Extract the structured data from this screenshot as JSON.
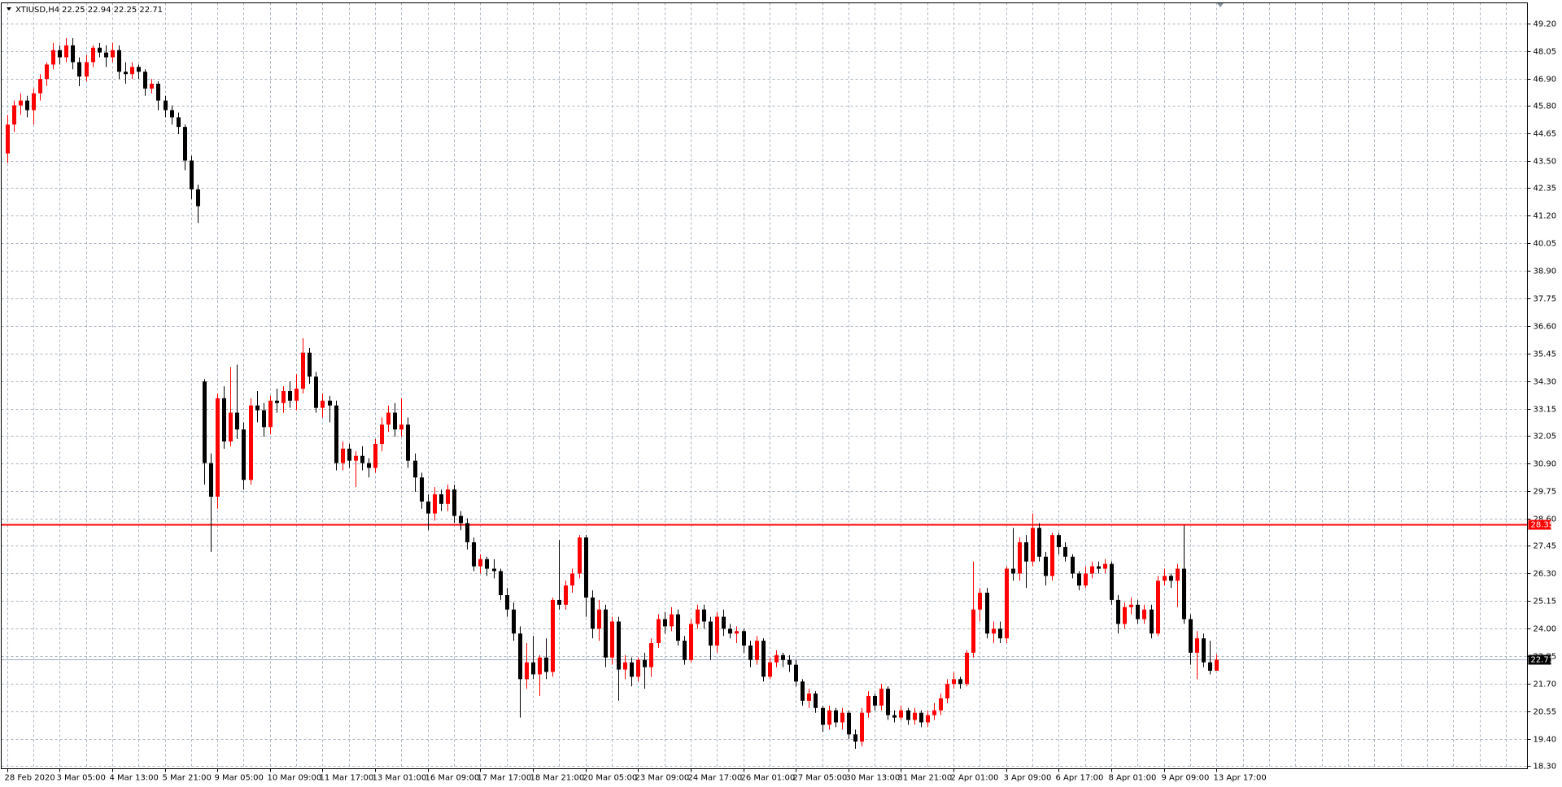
{
  "chart_data": {
    "type": "candlestick",
    "title": "XTIUSD,H4",
    "subtitle": "22.25 22.94 22.25 22.71",
    "bull_color": "#ff0000",
    "bear_color": "#000000",
    "grid": true,
    "ylim": [
      18.17,
      50.07
    ],
    "yticks": [
      {
        "value": 49.2,
        "label": "49.20"
      },
      {
        "value": 48.05,
        "label": "48.05"
      },
      {
        "value": 46.9,
        "label": "46.90"
      },
      {
        "value": 45.8,
        "label": "45.80"
      },
      {
        "value": 44.65,
        "label": "44.65"
      },
      {
        "value": 43.5,
        "label": "43.50"
      },
      {
        "value": 42.35,
        "label": "42.35"
      },
      {
        "value": 41.2,
        "label": "41.20"
      },
      {
        "value": 40.05,
        "label": "40.05"
      },
      {
        "value": 38.9,
        "label": "38.90"
      },
      {
        "value": 37.75,
        "label": "37.75"
      },
      {
        "value": 36.6,
        "label": "36.60"
      },
      {
        "value": 35.45,
        "label": "35.45"
      },
      {
        "value": 34.3,
        "label": "34.30"
      },
      {
        "value": 33.15,
        "label": "33.15"
      },
      {
        "value": 32.05,
        "label": "32.05"
      },
      {
        "value": 30.9,
        "label": "30.90"
      },
      {
        "value": 29.75,
        "label": "29.75"
      },
      {
        "value": 28.6,
        "label": "28.60"
      },
      {
        "value": 27.45,
        "label": "27.45"
      },
      {
        "value": 26.3,
        "label": "26.30"
      },
      {
        "value": 25.15,
        "label": "25.15"
      },
      {
        "value": 24.0,
        "label": "24.00"
      },
      {
        "value": 22.85,
        "label": "22.85"
      },
      {
        "value": 21.7,
        "label": "21.70"
      },
      {
        "value": 20.55,
        "label": "20.55"
      },
      {
        "value": 19.4,
        "label": "19.40"
      },
      {
        "value": 18.3,
        "label": "18.30"
      }
    ],
    "levels": [
      {
        "value": 28.35,
        "color": "#ff0000",
        "box_color": "#ff0000"
      },
      {
        "value": 22.71,
        "color": "#a0aec4",
        "box_color": "#000000"
      }
    ],
    "categories": [
      "28 Feb 2020",
      null,
      null,
      null,
      null,
      null,
      null,
      null,
      "3 Mar 05:00",
      null,
      null,
      null,
      null,
      null,
      null,
      null,
      "4 Mar 13:00",
      null,
      null,
      null,
      null,
      null,
      null,
      null,
      "5 Mar 21:00",
      null,
      null,
      null,
      null,
      null,
      null,
      null,
      "9 Mar 05:00",
      null,
      null,
      null,
      null,
      null,
      null,
      null,
      "10 Mar 09:00",
      null,
      null,
      null,
      null,
      null,
      null,
      null,
      "11 Mar 17:00",
      null,
      null,
      null,
      null,
      null,
      null,
      null,
      "13 Mar 01:00",
      null,
      null,
      null,
      null,
      null,
      null,
      null,
      "16 Mar 09:00",
      null,
      null,
      null,
      null,
      null,
      null,
      null,
      "17 Mar 17:00",
      null,
      null,
      null,
      null,
      null,
      null,
      null,
      "18 Mar 21:00",
      null,
      null,
      null,
      null,
      null,
      null,
      null,
      "20 Mar 05:00",
      null,
      null,
      null,
      null,
      null,
      null,
      null,
      "23 Mar 09:00",
      null,
      null,
      null,
      null,
      null,
      null,
      null,
      "24 Mar 17:00",
      null,
      null,
      null,
      null,
      null,
      null,
      null,
      "26 Mar 01:00",
      null,
      null,
      null,
      null,
      null,
      null,
      null,
      "27 Mar 05:00",
      null,
      null,
      null,
      null,
      null,
      null,
      null,
      "30 Mar 13:00",
      null,
      null,
      null,
      null,
      null,
      null,
      null,
      "31 Mar 21:00",
      null,
      null,
      null,
      null,
      null,
      null,
      null,
      "2 Apr 01:00",
      null,
      null,
      null,
      null,
      null,
      null,
      null,
      "3 Apr 09:00",
      null,
      null,
      null,
      null,
      null,
      null,
      null,
      "6 Apr 17:00",
      null,
      null,
      null,
      null,
      null,
      null,
      null,
      "8 Apr 01:00",
      null,
      null,
      null,
      null,
      null,
      null,
      null,
      "9 Apr 09:00",
      null,
      null,
      null,
      null,
      null,
      null,
      null,
      "13 Apr 17:00"
    ],
    "ohlc": [
      [
        43.8,
        45.4,
        43.4,
        45.0
      ],
      [
        45.0,
        46.0,
        44.7,
        45.8
      ],
      [
        45.8,
        46.3,
        45.4,
        46.0
      ],
      [
        46.0,
        46.2,
        45.3,
        45.6
      ],
      [
        45.6,
        46.5,
        45.0,
        46.3
      ],
      [
        46.3,
        47.1,
        46.0,
        46.9
      ],
      [
        46.9,
        47.6,
        46.6,
        47.5
      ],
      [
        47.5,
        48.4,
        47.3,
        48.1
      ],
      [
        48.1,
        48.3,
        47.5,
        47.8
      ],
      [
        47.8,
        48.6,
        47.6,
        48.3
      ],
      [
        48.3,
        48.6,
        47.3,
        47.6
      ],
      [
        47.6,
        47.8,
        46.6,
        47.0
      ],
      [
        47.0,
        47.9,
        46.8,
        47.6
      ],
      [
        47.6,
        48.3,
        47.4,
        48.2
      ],
      [
        48.2,
        48.4,
        47.8,
        48.0
      ],
      [
        48.0,
        48.3,
        47.4,
        47.8
      ],
      [
        47.8,
        48.4,
        47.6,
        48.1
      ],
      [
        48.1,
        48.3,
        46.9,
        47.2
      ],
      [
        47.2,
        47.6,
        46.7,
        47.1
      ],
      [
        47.1,
        47.6,
        46.9,
        47.4
      ],
      [
        47.4,
        47.5,
        46.9,
        47.2
      ],
      [
        47.2,
        47.3,
        46.2,
        46.5
      ],
      [
        46.5,
        46.9,
        46.3,
        46.7
      ],
      [
        46.7,
        46.8,
        45.6,
        46.0
      ],
      [
        46.0,
        46.2,
        45.3,
        45.6
      ],
      [
        45.6,
        45.8,
        45.0,
        45.3
      ],
      [
        45.3,
        45.5,
        44.6,
        44.9
      ],
      [
        44.9,
        45.0,
        43.1,
        43.5
      ],
      [
        43.5,
        43.7,
        41.9,
        42.3
      ],
      [
        42.3,
        42.5,
        40.9,
        41.6
      ],
      [
        34.3,
        34.4,
        30.0,
        30.9
      ],
      [
        30.9,
        31.3,
        27.2,
        29.5
      ],
      [
        29.5,
        33.8,
        29.0,
        33.6
      ],
      [
        33.6,
        34.1,
        31.5,
        31.8
      ],
      [
        31.8,
        34.9,
        31.6,
        33.0
      ],
      [
        33.0,
        35.0,
        31.9,
        32.3
      ],
      [
        32.3,
        32.6,
        29.8,
        30.2
      ],
      [
        30.2,
        33.6,
        30.0,
        33.3
      ],
      [
        33.3,
        33.9,
        32.6,
        33.1
      ],
      [
        33.1,
        33.4,
        32.0,
        32.4
      ],
      [
        32.4,
        33.7,
        32.1,
        33.5
      ],
      [
        33.5,
        34.0,
        33.0,
        33.4
      ],
      [
        33.4,
        34.1,
        33.0,
        33.9
      ],
      [
        33.9,
        34.3,
        33.2,
        33.5
      ],
      [
        33.5,
        34.6,
        33.1,
        34.0
      ],
      [
        34.0,
        36.1,
        33.8,
        35.5
      ],
      [
        35.5,
        35.7,
        34.2,
        34.5
      ],
      [
        34.5,
        34.7,
        33.0,
        33.2
      ],
      [
        33.2,
        33.8,
        32.8,
        33.5
      ],
      [
        33.5,
        33.7,
        32.6,
        33.3
      ],
      [
        33.3,
        33.5,
        30.6,
        30.9
      ],
      [
        30.9,
        31.8,
        30.6,
        31.5
      ],
      [
        31.5,
        31.7,
        30.7,
        31.0
      ],
      [
        31.0,
        31.4,
        29.9,
        31.2
      ],
      [
        31.2,
        31.6,
        30.6,
        30.9
      ],
      [
        30.9,
        31.1,
        30.3,
        30.7
      ],
      [
        30.7,
        31.9,
        30.5,
        31.7
      ],
      [
        31.7,
        32.8,
        31.4,
        32.5
      ],
      [
        32.5,
        33.3,
        32.2,
        33.0
      ],
      [
        33.0,
        33.4,
        32.0,
        32.3
      ],
      [
        32.3,
        33.6,
        32.0,
        32.5
      ],
      [
        32.5,
        32.8,
        30.7,
        31.0
      ],
      [
        31.0,
        31.3,
        29.7,
        30.3
      ],
      [
        30.3,
        30.5,
        29.0,
        29.3
      ],
      [
        29.3,
        29.6,
        28.1,
        28.8
      ],
      [
        28.8,
        29.9,
        28.5,
        29.6
      ],
      [
        29.6,
        29.8,
        28.9,
        29.2
      ],
      [
        29.2,
        30.0,
        28.9,
        29.8
      ],
      [
        29.8,
        30.0,
        28.4,
        28.7
      ],
      [
        28.7,
        28.9,
        28.1,
        28.4
      ],
      [
        28.4,
        28.6,
        27.3,
        27.6
      ],
      [
        27.6,
        27.8,
        26.4,
        26.6
      ],
      [
        26.6,
        27.1,
        26.3,
        26.9
      ],
      [
        26.9,
        27.0,
        26.2,
        26.5
      ],
      [
        26.5,
        26.9,
        26.1,
        26.4
      ],
      [
        26.4,
        26.5,
        25.2,
        25.4
      ],
      [
        25.4,
        25.7,
        24.5,
        24.8
      ],
      [
        24.8,
        25.1,
        23.5,
        23.8
      ],
      [
        23.8,
        24.1,
        20.3,
        21.9
      ],
      [
        21.9,
        23.4,
        21.5,
        22.6
      ],
      [
        22.6,
        23.7,
        21.9,
        22.1
      ],
      [
        22.1,
        22.9,
        21.2,
        22.8
      ],
      [
        22.8,
        23.6,
        21.9,
        22.2
      ],
      [
        22.2,
        25.3,
        22.0,
        25.2
      ],
      [
        25.2,
        27.7,
        24.8,
        25.0
      ],
      [
        25.0,
        26.0,
        24.8,
        25.8
      ],
      [
        25.8,
        26.5,
        25.5,
        26.3
      ],
      [
        26.3,
        27.9,
        26.1,
        27.8
      ],
      [
        27.8,
        27.9,
        24.5,
        25.3
      ],
      [
        25.3,
        25.6,
        23.6,
        24.0
      ],
      [
        24.0,
        25.2,
        23.5,
        24.8
      ],
      [
        24.8,
        25.0,
        22.4,
        22.8
      ],
      [
        22.8,
        24.5,
        22.5,
        24.3
      ],
      [
        24.3,
        24.5,
        21.0,
        22.3
      ],
      [
        22.3,
        22.9,
        21.9,
        22.6
      ],
      [
        22.6,
        22.8,
        21.6,
        22.0
      ],
      [
        22.0,
        22.8,
        21.8,
        22.7
      ],
      [
        22.7,
        23.0,
        21.5,
        22.4
      ],
      [
        22.4,
        23.6,
        22.0,
        23.4
      ],
      [
        23.4,
        24.6,
        23.2,
        24.4
      ],
      [
        24.4,
        24.7,
        23.8,
        24.1
      ],
      [
        24.1,
        24.9,
        23.9,
        24.6
      ],
      [
        24.6,
        24.8,
        23.3,
        23.5
      ],
      [
        23.5,
        23.7,
        22.5,
        22.7
      ],
      [
        22.7,
        24.4,
        22.6,
        24.2
      ],
      [
        24.2,
        25.0,
        24.0,
        24.8
      ],
      [
        24.8,
        25.0,
        24.0,
        24.3
      ],
      [
        24.3,
        24.5,
        22.7,
        23.3
      ],
      [
        23.3,
        24.7,
        23.0,
        24.5
      ],
      [
        24.5,
        24.8,
        23.7,
        24.0
      ],
      [
        24.0,
        24.2,
        23.6,
        23.8
      ],
      [
        23.8,
        24.1,
        23.4,
        23.9
      ],
      [
        23.9,
        24.0,
        23.0,
        23.3
      ],
      [
        23.3,
        23.5,
        22.4,
        22.7
      ],
      [
        22.7,
        23.7,
        22.5,
        23.5
      ],
      [
        23.5,
        23.6,
        21.8,
        22.0
      ],
      [
        22.0,
        22.8,
        21.9,
        22.6
      ],
      [
        22.6,
        23.1,
        22.4,
        22.9
      ],
      [
        22.9,
        23.0,
        22.4,
        22.7
      ],
      [
        22.7,
        22.9,
        22.2,
        22.5
      ],
      [
        22.5,
        22.7,
        21.6,
        21.8
      ],
      [
        21.8,
        21.9,
        20.8,
        21.0
      ],
      [
        21.0,
        21.5,
        20.7,
        21.3
      ],
      [
        21.3,
        21.4,
        20.5,
        20.7
      ],
      [
        20.7,
        20.8,
        19.7,
        20.0
      ],
      [
        20.0,
        20.8,
        19.8,
        20.6
      ],
      [
        20.6,
        20.7,
        19.9,
        20.1
      ],
      [
        20.1,
        20.7,
        19.8,
        20.5
      ],
      [
        20.5,
        20.6,
        19.4,
        19.6
      ],
      [
        19.6,
        19.8,
        19.0,
        19.3
      ],
      [
        19.3,
        20.7,
        19.1,
        20.5
      ],
      [
        20.5,
        21.4,
        20.3,
        21.2
      ],
      [
        21.2,
        21.3,
        20.6,
        20.8
      ],
      [
        20.8,
        21.7,
        20.6,
        21.5
      ],
      [
        21.5,
        21.6,
        20.2,
        20.4
      ],
      [
        20.4,
        20.6,
        20.1,
        20.3
      ],
      [
        20.3,
        20.8,
        20.2,
        20.6
      ],
      [
        20.6,
        20.7,
        20.0,
        20.2
      ],
      [
        20.2,
        20.7,
        20.0,
        20.5
      ],
      [
        20.5,
        20.6,
        19.9,
        20.1
      ],
      [
        20.1,
        20.6,
        19.9,
        20.4
      ],
      [
        20.4,
        20.9,
        20.2,
        20.6
      ],
      [
        20.6,
        21.3,
        20.4,
        21.1
      ],
      [
        21.1,
        21.9,
        20.9,
        21.7
      ],
      [
        21.7,
        22.2,
        21.5,
        21.9
      ],
      [
        21.9,
        22.0,
        21.5,
        21.7
      ],
      [
        21.7,
        23.1,
        21.6,
        23.0
      ],
      [
        23.0,
        26.8,
        22.8,
        24.8
      ],
      [
        24.8,
        25.7,
        24.3,
        25.5
      ],
      [
        25.5,
        25.7,
        23.6,
        23.8
      ],
      [
        23.8,
        24.3,
        23.4,
        24.0
      ],
      [
        24.0,
        24.3,
        23.4,
        23.6
      ],
      [
        23.6,
        26.6,
        23.4,
        26.5
      ],
      [
        26.5,
        28.2,
        26.0,
        26.3
      ],
      [
        26.3,
        27.8,
        26.0,
        27.6
      ],
      [
        27.6,
        27.9,
        25.7,
        26.8
      ],
      [
        26.8,
        28.8,
        26.6,
        28.2
      ],
      [
        28.2,
        28.4,
        26.8,
        27.0
      ],
      [
        27.0,
        27.2,
        25.8,
        26.2
      ],
      [
        26.2,
        28.0,
        26.0,
        27.9
      ],
      [
        27.9,
        28.0,
        27.1,
        27.4
      ],
      [
        27.4,
        27.6,
        26.8,
        27.0
      ],
      [
        27.0,
        27.1,
        26.1,
        26.3
      ],
      [
        26.3,
        26.4,
        25.6,
        25.8
      ],
      [
        25.8,
        26.6,
        25.7,
        26.3
      ],
      [
        26.3,
        26.8,
        26.1,
        26.6
      ],
      [
        26.6,
        26.8,
        26.3,
        26.5
      ],
      [
        26.5,
        26.9,
        26.3,
        26.7
      ],
      [
        26.7,
        26.8,
        25.0,
        25.2
      ],
      [
        25.2,
        25.4,
        23.8,
        24.2
      ],
      [
        24.2,
        25.1,
        24.0,
        24.9
      ],
      [
        24.9,
        25.3,
        24.6,
        25.0
      ],
      [
        25.0,
        25.2,
        24.2,
        24.4
      ],
      [
        24.4,
        25.0,
        24.2,
        24.8
      ],
      [
        24.8,
        25.0,
        23.6,
        23.8
      ],
      [
        23.8,
        26.2,
        23.7,
        26.0
      ],
      [
        26.0,
        26.5,
        25.8,
        26.2
      ],
      [
        26.2,
        26.3,
        25.7,
        26.0
      ],
      [
        26.0,
        26.7,
        24.9,
        26.5
      ],
      [
        26.5,
        28.3,
        24.2,
        24.4
      ],
      [
        24.4,
        24.6,
        22.5,
        23.0
      ],
      [
        23.0,
        23.9,
        21.9,
        23.6
      ],
      [
        23.6,
        23.8,
        22.4,
        22.6
      ],
      [
        22.6,
        23.5,
        22.1,
        22.25
      ],
      [
        22.25,
        22.94,
        22.25,
        22.71
      ]
    ]
  }
}
